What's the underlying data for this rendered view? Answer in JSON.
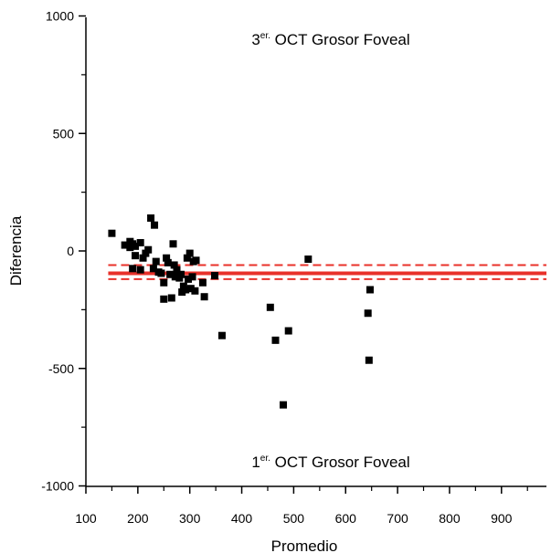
{
  "chart_data": {
    "type": "scatter",
    "title": "",
    "xlabel": "Promedio",
    "ylabel": "Diferencia",
    "xlim": [
      100,
      980
    ],
    "ylim": [
      -1000,
      1000
    ],
    "xticks": [
      100,
      200,
      300,
      400,
      500,
      600,
      700,
      800,
      900
    ],
    "yticks": [
      1000,
      500,
      0,
      -500,
      -1000
    ],
    "xtick_labels": [
      "100",
      "200",
      "300",
      "400",
      "500",
      "600",
      "700",
      "800",
      "900"
    ],
    "ytick_labels": [
      "1000",
      "500",
      "0",
      "-500",
      "-1000"
    ],
    "grid": false,
    "annotations": {
      "top": {
        "prefix": "3",
        "sup": "er.",
        "text": " OCT Grosor Foveal"
      },
      "bottom": {
        "prefix": "1",
        "sup": "er.",
        "text": " OCT Grosor Foveal"
      }
    },
    "reference_lines": {
      "mean": -95,
      "upper": -60,
      "lower": -120,
      "color": "#e8312a"
    },
    "marker_color": "#000000",
    "points": [
      [
        150,
        75
      ],
      [
        175,
        25
      ],
      [
        185,
        40
      ],
      [
        185,
        15
      ],
      [
        190,
        30
      ],
      [
        195,
        20
      ],
      [
        205,
        35
      ],
      [
        190,
        -75
      ],
      [
        195,
        -20
      ],
      [
        205,
        -80
      ],
      [
        210,
        -30
      ],
      [
        215,
        -10
      ],
      [
        220,
        5
      ],
      [
        225,
        140
      ],
      [
        232,
        110
      ],
      [
        230,
        -75
      ],
      [
        235,
        -45
      ],
      [
        240,
        -90
      ],
      [
        245,
        -95
      ],
      [
        250,
        -135
      ],
      [
        250,
        -205
      ],
      [
        255,
        -30
      ],
      [
        258,
        -50
      ],
      [
        262,
        -100
      ],
      [
        265,
        -200
      ],
      [
        268,
        30
      ],
      [
        270,
        -60
      ],
      [
        272,
        -110
      ],
      [
        275,
        -80
      ],
      [
        280,
        -115
      ],
      [
        283,
        -100
      ],
      [
        285,
        -175
      ],
      [
        288,
        -150
      ],
      [
        292,
        -165
      ],
      [
        295,
        -30
      ],
      [
        297,
        -120
      ],
      [
        300,
        -10
      ],
      [
        302,
        -160
      ],
      [
        305,
        -110
      ],
      [
        307,
        -45
      ],
      [
        310,
        -170
      ],
      [
        312,
        -40
      ],
      [
        325,
        -135
      ],
      [
        328,
        -195
      ],
      [
        348,
        -105
      ],
      [
        362,
        -360
      ],
      [
        455,
        -240
      ],
      [
        465,
        -380
      ],
      [
        480,
        -655
      ],
      [
        490,
        -340
      ],
      [
        528,
        -35
      ],
      [
        643,
        -265
      ],
      [
        645,
        -465
      ],
      [
        647,
        -165
      ]
    ]
  }
}
